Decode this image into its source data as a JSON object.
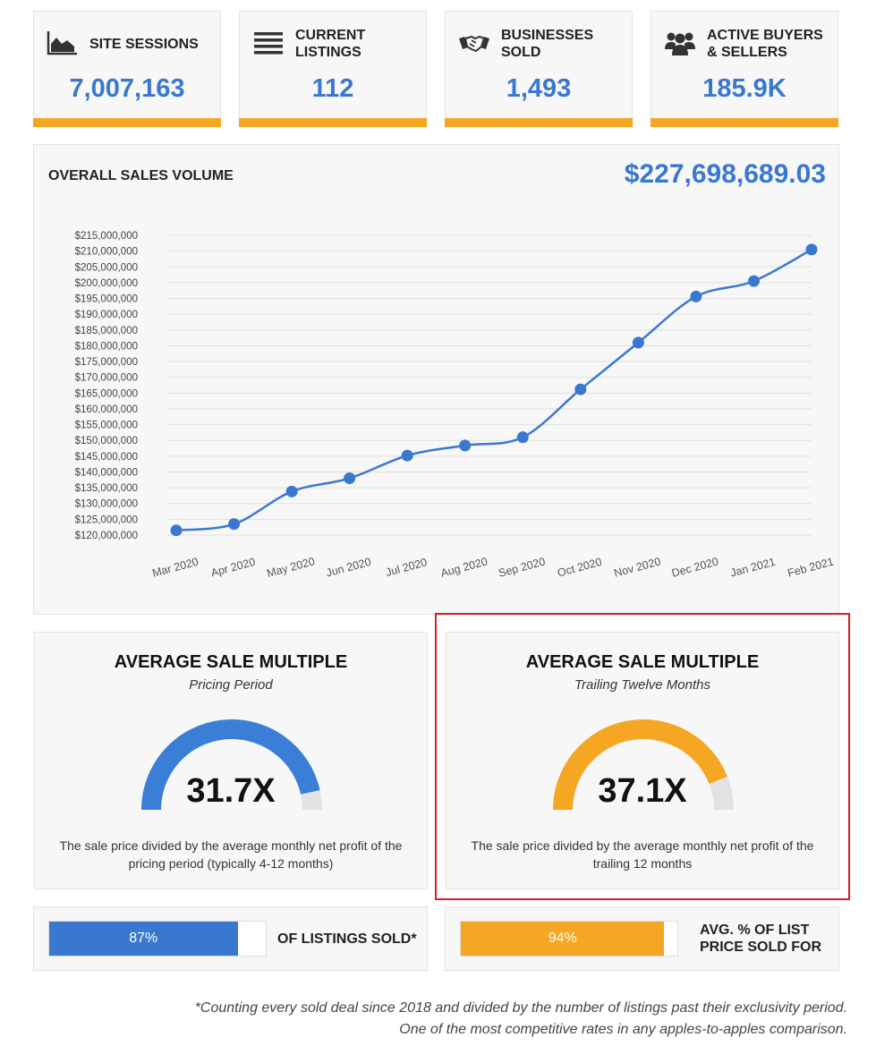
{
  "stats": [
    {
      "label": "SITE SESSIONS",
      "value": "7,007,163",
      "icon": "area-chart-icon"
    },
    {
      "label": "CURRENT LISTINGS",
      "value": "112",
      "icon": "list-icon"
    },
    {
      "label": "BUSINESSES SOLD",
      "value": "1,493",
      "icon": "handshake-icon"
    },
    {
      "label": "ACTIVE BUYERS & SELLERS",
      "value": "185.9K",
      "icon": "users-icon"
    }
  ],
  "chart": {
    "title": "OVERALL SALES VOLUME",
    "total": "$227,698,689.03"
  },
  "chart_data": {
    "type": "line",
    "title": "OVERALL SALES VOLUME",
    "xlabel": "",
    "ylabel": "",
    "categories": [
      "Mar 2020",
      "Apr 2020",
      "May 2020",
      "Jun 2020",
      "Jul 2020",
      "Aug 2020",
      "Sep 2020",
      "Oct 2020",
      "Nov 2020",
      "Dec 2020",
      "Jan 2021",
      "Feb 2021"
    ],
    "values": [
      121500000,
      123500000,
      133800000,
      138000000,
      145200000,
      148400000,
      151000000,
      166200000,
      181000000,
      195600000,
      200500000,
      210500000
    ],
    "ylim": [
      120000000,
      215000000
    ],
    "yticks": [
      "$215,000,000",
      "$210,000,000",
      "$205,000,000",
      "$200,000,000",
      "$195,000,000",
      "$190,000,000",
      "$185,000,000",
      "$180,000,000",
      "$175,000,000",
      "$170,000,000",
      "$165,000,000",
      "$160,000,000",
      "$155,000,000",
      "$150,000,000",
      "$145,000,000",
      "$140,000,000",
      "$135,000,000",
      "$130,000,000",
      "$125,000,000",
      "$120,000,000"
    ],
    "grid": true,
    "legend": "none",
    "color": "#3a78d0"
  },
  "multiples": [
    {
      "title": "AVERAGE SALE MULTIPLE",
      "subtitle": "Pricing Period",
      "value": "31.7X",
      "gauge_fraction": 0.93,
      "color": "#3a7fd5",
      "description": "The sale price divided by the average monthly net profit of the pricing period (typically 4-12 months)"
    },
    {
      "title": "AVERAGE SALE MULTIPLE",
      "subtitle": "Trailing Twelve Months",
      "value": "37.1X",
      "gauge_fraction": 0.88,
      "color": "#f5a623",
      "description": "The sale price divided by the average monthly net profit of the trailing 12 months"
    }
  ],
  "progress": [
    {
      "value_label": "87%",
      "fraction": 0.87,
      "label": "OF LISTINGS SOLD*",
      "color": "#3a78d0"
    },
    {
      "value_label": "94%",
      "fraction": 0.94,
      "label": "AVG. % OF LIST PRICE SOLD FOR",
      "color": "#f5a623"
    }
  ],
  "footnote": {
    "line1": "*Counting every sold deal since 2018 and divided by the number of listings past their exclusivity period.",
    "line2": "One of the most competitive rates in any apples-to-apples comparison."
  }
}
